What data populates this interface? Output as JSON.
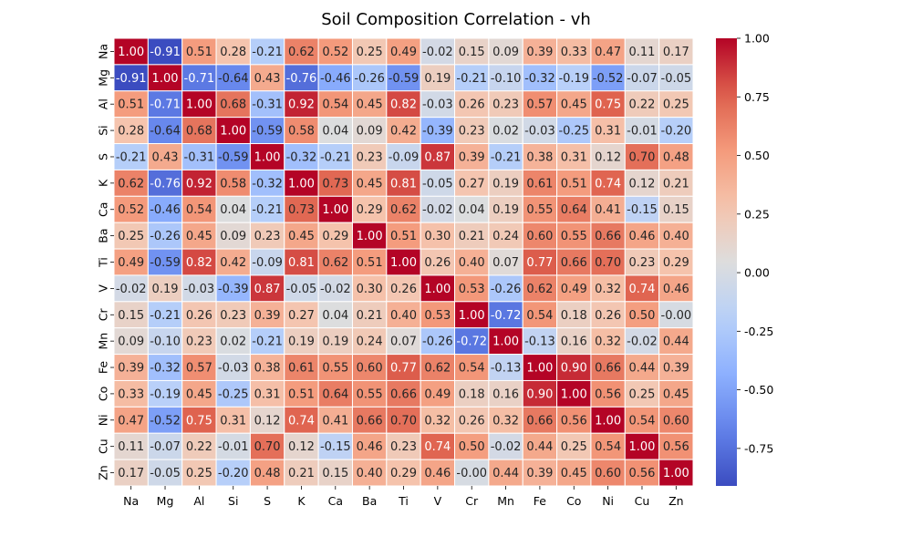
{
  "chart_data": {
    "type": "heatmap",
    "title": "Soil Composition Correlation - vh",
    "x_labels": [
      "Na",
      "Mg",
      "Al",
      "Si",
      "S",
      "K",
      "Ca",
      "Ba",
      "Ti",
      "V",
      "Cr",
      "Mn",
      "Fe",
      "Co",
      "Ni",
      "Cu",
      "Zn"
    ],
    "y_labels": [
      "Na",
      "Mg",
      "Al",
      "Si",
      "S",
      "K",
      "Ca",
      "Ba",
      "Ti",
      "V",
      "Cr",
      "Mn",
      "Fe",
      "Co",
      "Ni",
      "Cu",
      "Zn"
    ],
    "values": [
      [
        1.0,
        -0.91,
        0.51,
        0.28,
        -0.21,
        0.62,
        0.52,
        0.25,
        0.49,
        -0.02,
        0.15,
        0.09,
        0.39,
        0.33,
        0.47,
        0.11,
        0.17
      ],
      [
        -0.91,
        1.0,
        -0.71,
        -0.64,
        0.43,
        -0.76,
        -0.46,
        -0.26,
        -0.59,
        0.19,
        -0.21,
        -0.1,
        -0.32,
        -0.19,
        -0.52,
        -0.07,
        -0.05
      ],
      [
        0.51,
        -0.71,
        1.0,
        0.68,
        -0.31,
        0.92,
        0.54,
        0.45,
        0.82,
        -0.03,
        0.26,
        0.23,
        0.57,
        0.45,
        0.75,
        0.22,
        0.25
      ],
      [
        0.28,
        -0.64,
        0.68,
        1.0,
        -0.59,
        0.58,
        0.04,
        0.09,
        0.42,
        -0.39,
        0.23,
        0.02,
        -0.03,
        -0.25,
        0.31,
        -0.01,
        -0.2
      ],
      [
        -0.21,
        0.43,
        -0.31,
        -0.59,
        1.0,
        -0.32,
        -0.21,
        0.23,
        -0.09,
        0.87,
        0.39,
        -0.21,
        0.38,
        0.31,
        0.12,
        0.7,
        0.48
      ],
      [
        0.62,
        -0.76,
        0.92,
        0.58,
        -0.32,
        1.0,
        0.73,
        0.45,
        0.81,
        -0.05,
        0.27,
        0.19,
        0.61,
        0.51,
        0.74,
        0.12,
        0.21
      ],
      [
        0.52,
        -0.46,
        0.54,
        0.04,
        -0.21,
        0.73,
        1.0,
        0.29,
        0.62,
        -0.02,
        0.04,
        0.19,
        0.55,
        0.64,
        0.41,
        -0.15,
        0.15
      ],
      [
        0.25,
        -0.26,
        0.45,
        0.09,
        0.23,
        0.45,
        0.29,
        1.0,
        0.51,
        0.3,
        0.21,
        0.24,
        0.6,
        0.55,
        0.66,
        0.46,
        0.4
      ],
      [
        0.49,
        -0.59,
        0.82,
        0.42,
        -0.09,
        0.81,
        0.62,
        0.51,
        1.0,
        0.26,
        0.4,
        0.07,
        0.77,
        0.66,
        0.7,
        0.23,
        0.29
      ],
      [
        -0.02,
        0.19,
        -0.03,
        -0.39,
        0.87,
        -0.05,
        -0.02,
        0.3,
        0.26,
        1.0,
        0.53,
        -0.26,
        0.62,
        0.49,
        0.32,
        0.74,
        0.46
      ],
      [
        0.15,
        -0.21,
        0.26,
        0.23,
        0.39,
        0.27,
        0.04,
        0.21,
        0.4,
        0.53,
        1.0,
        -0.72,
        0.54,
        0.18,
        0.26,
        0.5,
        -0.0
      ],
      [
        0.09,
        -0.1,
        0.23,
        0.02,
        -0.21,
        0.19,
        0.19,
        0.24,
        0.07,
        -0.26,
        -0.72,
        1.0,
        -0.13,
        0.16,
        0.32,
        -0.02,
        0.44
      ],
      [
        0.39,
        -0.32,
        0.57,
        -0.03,
        0.38,
        0.61,
        0.55,
        0.6,
        0.77,
        0.62,
        0.54,
        -0.13,
        1.0,
        0.9,
        0.66,
        0.44,
        0.39
      ],
      [
        0.33,
        -0.19,
        0.45,
        -0.25,
        0.31,
        0.51,
        0.64,
        0.55,
        0.66,
        0.49,
        0.18,
        0.16,
        0.9,
        1.0,
        0.56,
        0.25,
        0.45
      ],
      [
        0.47,
        -0.52,
        0.75,
        0.31,
        0.12,
        0.74,
        0.41,
        0.66,
        0.7,
        0.32,
        0.26,
        0.32,
        0.66,
        0.56,
        1.0,
        0.54,
        0.6
      ],
      [
        0.11,
        -0.07,
        0.22,
        -0.01,
        0.7,
        0.12,
        -0.15,
        0.46,
        0.23,
        0.74,
        0.5,
        -0.02,
        0.44,
        0.25,
        0.54,
        1.0,
        0.56
      ],
      [
        0.17,
        -0.05,
        0.25,
        -0.2,
        0.48,
        0.21,
        0.15,
        0.4,
        0.29,
        0.46,
        -0.0,
        0.44,
        0.39,
        0.45,
        0.6,
        0.56,
        1.0
      ]
    ],
    "colormap": "coolwarm",
    "vmin": -0.91,
    "vmax": 1.0,
    "colorbar_ticks": [
      "1.00",
      "0.75",
      "0.50",
      "0.25",
      "0.00",
      "-0.25",
      "-0.50",
      "-0.75"
    ],
    "colorbar_tick_values": [
      1.0,
      0.75,
      0.5,
      0.25,
      0.0,
      -0.25,
      -0.5,
      -0.75
    ],
    "cell_border_color": "#ffffff",
    "annotations": true,
    "legend": "colorbar-right"
  }
}
